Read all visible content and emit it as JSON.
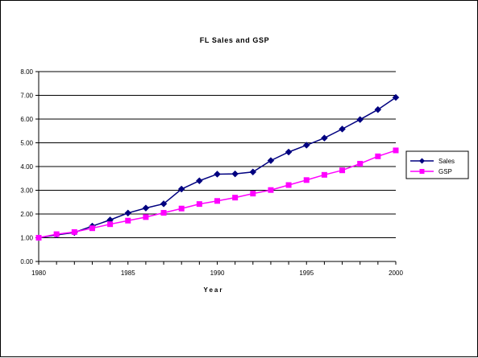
{
  "chart_data": {
    "type": "line",
    "title": "FL Sales and GSP",
    "xlabel": "Year",
    "ylabel": "",
    "xlim": [
      1980,
      2000
    ],
    "ylim": [
      0,
      8
    ],
    "x_ticks": [
      "1980",
      "1985",
      "1990",
      "1995",
      "2000"
    ],
    "y_ticks": [
      "0.00",
      "1.00",
      "2.00",
      "3.00",
      "4.00",
      "5.00",
      "6.00",
      "7.00",
      "8.00"
    ],
    "grid": "horizontal",
    "legend_position": "right",
    "x": [
      1980,
      1981,
      1982,
      1983,
      1984,
      1985,
      1986,
      1987,
      1988,
      1989,
      1990,
      1991,
      1992,
      1993,
      1994,
      1995,
      1996,
      1997,
      1998,
      1999,
      2000
    ],
    "series": [
      {
        "name": "Sales",
        "color": "#000080",
        "marker": "diamond",
        "values": [
          1.0,
          1.12,
          1.22,
          1.49,
          1.75,
          2.04,
          2.25,
          2.43,
          3.05,
          3.4,
          3.68,
          3.69,
          3.77,
          4.25,
          4.61,
          4.9,
          5.2,
          5.58,
          5.98,
          6.4,
          6.91
        ]
      },
      {
        "name": "GSP",
        "color": "#FF00FF",
        "marker": "square",
        "values": [
          1.0,
          1.15,
          1.24,
          1.4,
          1.57,
          1.72,
          1.87,
          2.05,
          2.23,
          2.42,
          2.55,
          2.69,
          2.86,
          3.01,
          3.22,
          3.43,
          3.65,
          3.84,
          4.12,
          4.43,
          4.68
        ]
      }
    ]
  }
}
